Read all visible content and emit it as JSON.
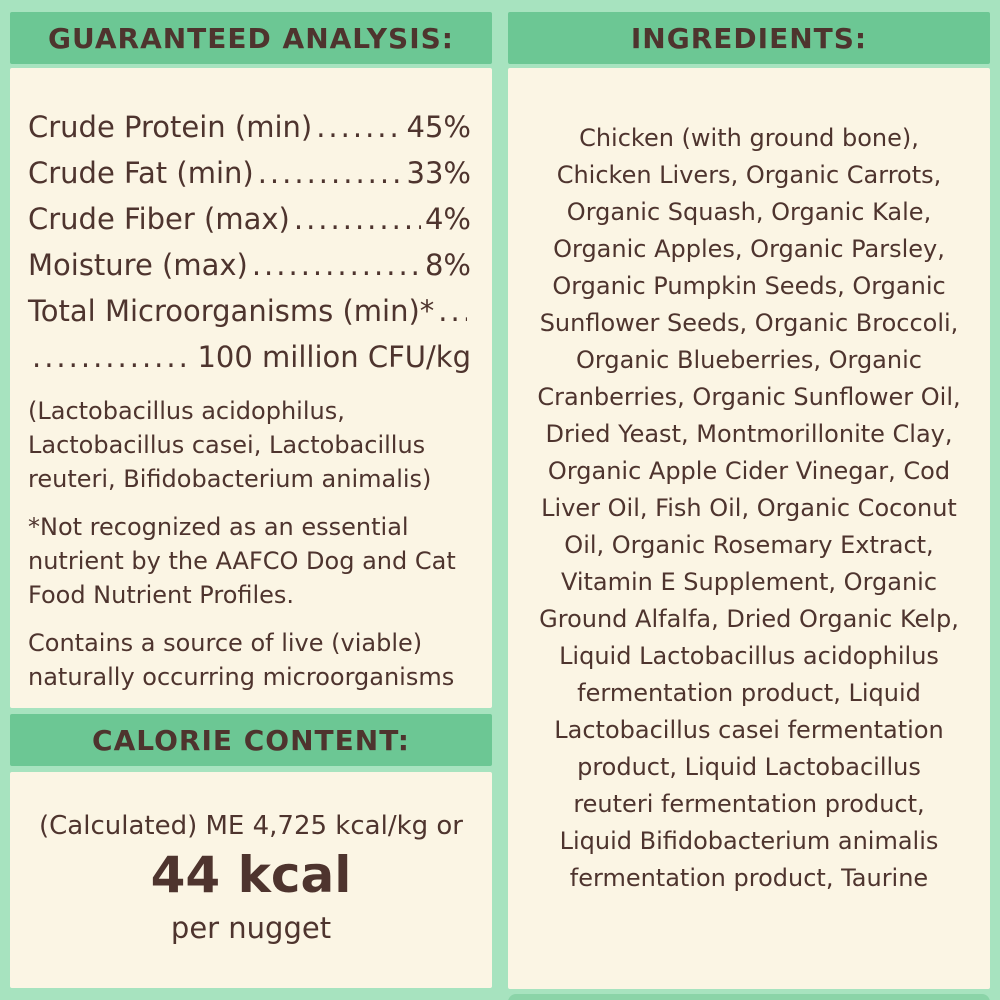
{
  "palette": {
    "background_mint": "#a7e3bf",
    "band_green": "#6cc794",
    "panel_cream": "#fbf5e4",
    "text_brown": "#4e342e"
  },
  "guaranteed_analysis": {
    "title": "GUARANTEED ANALYSIS:",
    "rows": [
      {
        "label": "Crude Protein (min)",
        "value": "45%"
      },
      {
        "label": "Crude Fat (min)",
        "value": "33%"
      },
      {
        "label": "Crude Fiber (max)",
        "value": "4%"
      },
      {
        "label": "Moisture (max)",
        "value": "8%"
      },
      {
        "label": "Total Microorganisms (min)*",
        "value": ""
      },
      {
        "label": "",
        "value": "100 million CFU/kg"
      }
    ],
    "microorganism_list": "(Lactobacillus acidophilus, Lactobacillus casei, Lactobacillus reuteri, Bifidobacterium animalis)",
    "footnote": "*Not recognized as an essential nutrient by the AAFCO Dog and Cat Food Nutrient Profiles.",
    "live_note": "Contains a source of live (viable) naturally occurring microorganisms"
  },
  "calorie_content": {
    "title": "CALORIE CONTENT:",
    "line1": "(Calculated) ME 4,725 kcal/kg or",
    "value": "44 kcal",
    "unit": "per nugget"
  },
  "ingredients": {
    "title": "INGREDIENTS:",
    "lines": [
      "Chicken (with ground bone),",
      "Chicken Livers, Organic Carrots,",
      "Organic Squash, Organic Kale,",
      "Organic Apples, Organic Parsley,",
      "Organic Pumpkin Seeds, Organic",
      "Sunflower Seeds, Organic Broccoli,",
      "Organic Blueberries, Organic",
      "Cranberries, Organic Sunflower Oil,",
      "Dried Yeast, Montmorillonite Clay,",
      "Organic Apple Cider Vinegar, Cod",
      "Liver Oil, Fish Oil, Organic Coconut",
      "Oil, Organic Rosemary Extract,",
      "Vitamin E Supplement, Organic",
      "Ground Alfalfa, Dried Organic Kelp,",
      "Liquid Lactobacillus acidophilus",
      "fermentation product, Liquid",
      "Lactobacillus casei fermentation",
      "product, Liquid Lactobacillus",
      "reuteri fermentation product,",
      "Liquid Bifidobacterium animalis",
      "fermentation product, Taurine"
    ]
  }
}
